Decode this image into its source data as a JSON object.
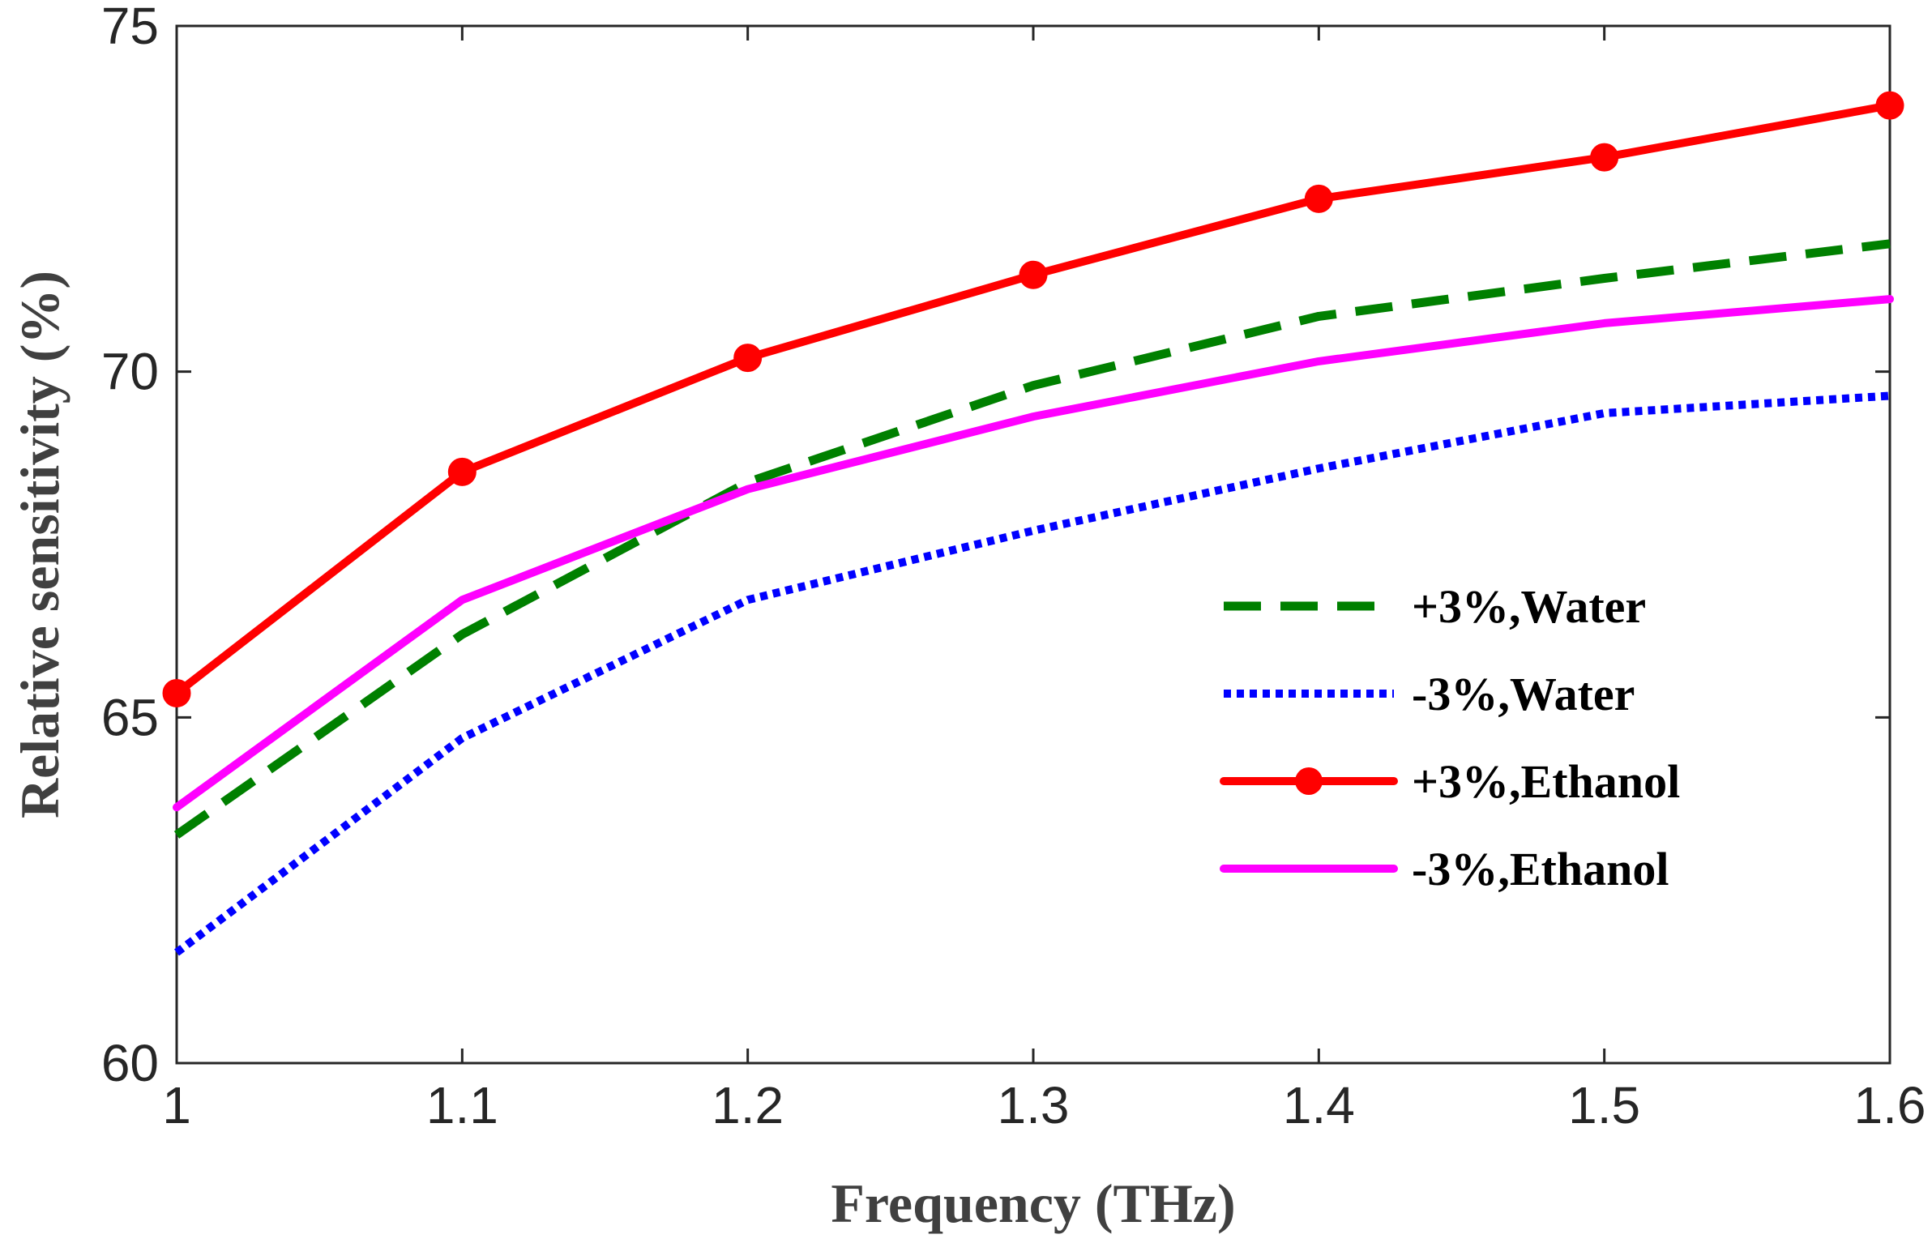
{
  "chart_data": {
    "type": "line",
    "title": "",
    "xlabel": "Frequency (THz)",
    "ylabel": "Relative sensitivity (%)",
    "xlim": [
      1,
      1.6
    ],
    "ylim": [
      60,
      75
    ],
    "xticks": [
      1,
      1.1,
      1.2,
      1.3,
      1.4,
      1.5,
      1.6
    ],
    "xtick_labels": [
      "1",
      "1.1",
      "1.2",
      "1.3",
      "1.4",
      "1.5",
      "1.6"
    ],
    "yticks": [
      60,
      65,
      70,
      75
    ],
    "ytick_labels": [
      "60",
      "65",
      "70",
      "75"
    ],
    "grid": false,
    "legend_position": "center-right",
    "x": [
      1,
      1.1,
      1.2,
      1.3,
      1.4,
      1.5,
      1.6
    ],
    "series": [
      {
        "name": "+3%,Water",
        "values": [
          63.3,
          66.2,
          68.4,
          69.8,
          70.8,
          71.35,
          71.85
        ],
        "color": "#008000",
        "style": "dashed",
        "marker": "none"
      },
      {
        "name": "-3%,Water",
        "values": [
          61.6,
          64.7,
          66.7,
          67.7,
          68.6,
          69.4,
          69.65
        ],
        "color": "#0000ff",
        "style": "dotted",
        "marker": "none"
      },
      {
        "name": "+3%,Ethanol",
        "values": [
          65.35,
          68.55,
          70.2,
          71.4,
          72.5,
          73.1,
          73.85
        ],
        "color": "#ff0000",
        "style": "solid",
        "marker": "circle"
      },
      {
        "name": "-3%,Ethanol",
        "values": [
          63.7,
          66.7,
          68.3,
          69.35,
          70.15,
          70.7,
          71.05
        ],
        "color": "#ff00ff",
        "style": "solid",
        "marker": "none"
      }
    ]
  }
}
